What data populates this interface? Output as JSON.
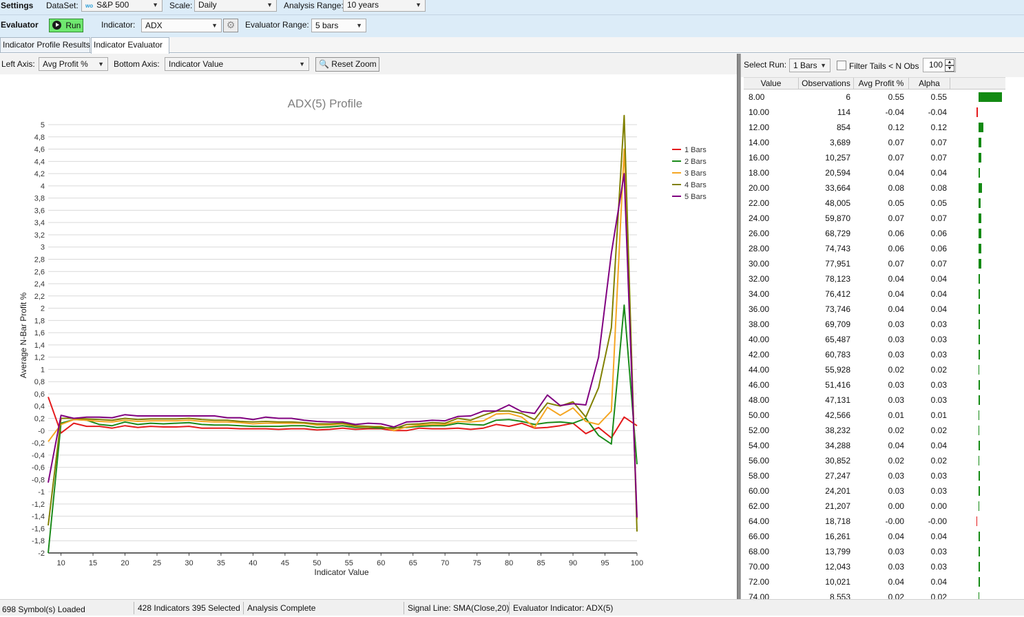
{
  "settings_bar": {
    "title": "Settings",
    "dataset_label": "DataSet:",
    "dataset_badge": "wo",
    "dataset_value": "S&P 500",
    "scale_label": "Scale:",
    "scale_value": "Daily",
    "range_label": "Analysis Range:",
    "range_value": "10 years"
  },
  "evaluator_bar": {
    "title": "Evaluator",
    "run_label": "Run",
    "indicator_label": "Indicator:",
    "indicator_value": "ADX",
    "eval_range_label": "Evaluator Range:",
    "eval_range_value": "5 bars"
  },
  "tabs": [
    {
      "label": "Indicator Profile Results",
      "active": false
    },
    {
      "label": "Indicator Evaluator",
      "active": true
    }
  ],
  "chart_toolbar": {
    "left_axis_label": "Left Axis:",
    "left_axis_value": "Avg Profit %",
    "bottom_axis_label": "Bottom Axis:",
    "bottom_axis_value": "Indicator Value",
    "reset_zoom_label": "Reset Zoom"
  },
  "right_toolbar": {
    "select_run_label": "Select Run:",
    "select_run_value": "1 Bars",
    "filter_label": "Filter Tails < N Obs",
    "filter_checked": false,
    "n_obs_value": "100"
  },
  "results_table": {
    "columns": [
      "Value",
      "Observations",
      "Avg Profit %",
      "Alpha"
    ],
    "rows": [
      {
        "value": "8.00",
        "obs": "6",
        "avg": "0.55",
        "alpha": "0.55",
        "a": 0.55
      },
      {
        "value": "10.00",
        "obs": "114",
        "avg": "-0.04",
        "alpha": "-0.04",
        "a": -0.04
      },
      {
        "value": "12.00",
        "obs": "854",
        "avg": "0.12",
        "alpha": "0.12",
        "a": 0.12
      },
      {
        "value": "14.00",
        "obs": "3,689",
        "avg": "0.07",
        "alpha": "0.07",
        "a": 0.07
      },
      {
        "value": "16.00",
        "obs": "10,257",
        "avg": "0.07",
        "alpha": "0.07",
        "a": 0.07
      },
      {
        "value": "18.00",
        "obs": "20,594",
        "avg": "0.04",
        "alpha": "0.04",
        "a": 0.04
      },
      {
        "value": "20.00",
        "obs": "33,664",
        "avg": "0.08",
        "alpha": "0.08",
        "a": 0.08
      },
      {
        "value": "22.00",
        "obs": "48,005",
        "avg": "0.05",
        "alpha": "0.05",
        "a": 0.05
      },
      {
        "value": "24.00",
        "obs": "59,870",
        "avg": "0.07",
        "alpha": "0.07",
        "a": 0.07
      },
      {
        "value": "26.00",
        "obs": "68,729",
        "avg": "0.06",
        "alpha": "0.06",
        "a": 0.06
      },
      {
        "value": "28.00",
        "obs": "74,743",
        "avg": "0.06",
        "alpha": "0.06",
        "a": 0.06
      },
      {
        "value": "30.00",
        "obs": "77,951",
        "avg": "0.07",
        "alpha": "0.07",
        "a": 0.07
      },
      {
        "value": "32.00",
        "obs": "78,123",
        "avg": "0.04",
        "alpha": "0.04",
        "a": 0.04
      },
      {
        "value": "34.00",
        "obs": "76,412",
        "avg": "0.04",
        "alpha": "0.04",
        "a": 0.04
      },
      {
        "value": "36.00",
        "obs": "73,746",
        "avg": "0.04",
        "alpha": "0.04",
        "a": 0.04
      },
      {
        "value": "38.00",
        "obs": "69,709",
        "avg": "0.03",
        "alpha": "0.03",
        "a": 0.03
      },
      {
        "value": "40.00",
        "obs": "65,487",
        "avg": "0.03",
        "alpha": "0.03",
        "a": 0.03
      },
      {
        "value": "42.00",
        "obs": "60,783",
        "avg": "0.03",
        "alpha": "0.03",
        "a": 0.03
      },
      {
        "value": "44.00",
        "obs": "55,928",
        "avg": "0.02",
        "alpha": "0.02",
        "a": 0.02
      },
      {
        "value": "46.00",
        "obs": "51,416",
        "avg": "0.03",
        "alpha": "0.03",
        "a": 0.03
      },
      {
        "value": "48.00",
        "obs": "47,131",
        "avg": "0.03",
        "alpha": "0.03",
        "a": 0.03
      },
      {
        "value": "50.00",
        "obs": "42,566",
        "avg": "0.01",
        "alpha": "0.01",
        "a": 0.01
      },
      {
        "value": "52.00",
        "obs": "38,232",
        "avg": "0.02",
        "alpha": "0.02",
        "a": 0.02
      },
      {
        "value": "54.00",
        "obs": "34,288",
        "avg": "0.04",
        "alpha": "0.04",
        "a": 0.04
      },
      {
        "value": "56.00",
        "obs": "30,852",
        "avg": "0.02",
        "alpha": "0.02",
        "a": 0.02
      },
      {
        "value": "58.00",
        "obs": "27,247",
        "avg": "0.03",
        "alpha": "0.03",
        "a": 0.03
      },
      {
        "value": "60.00",
        "obs": "24,201",
        "avg": "0.03",
        "alpha": "0.03",
        "a": 0.03
      },
      {
        "value": "62.00",
        "obs": "21,207",
        "avg": "0.00",
        "alpha": "0.00",
        "a": 0.0
      },
      {
        "value": "64.00",
        "obs": "18,718",
        "avg": "-0.00",
        "alpha": "-0.00",
        "a": -0.004
      },
      {
        "value": "66.00",
        "obs": "16,261",
        "avg": "0.04",
        "alpha": "0.04",
        "a": 0.04
      },
      {
        "value": "68.00",
        "obs": "13,799",
        "avg": "0.03",
        "alpha": "0.03",
        "a": 0.03
      },
      {
        "value": "70.00",
        "obs": "12,043",
        "avg": "0.03",
        "alpha": "0.03",
        "a": 0.03
      },
      {
        "value": "72.00",
        "obs": "10,021",
        "avg": "0.04",
        "alpha": "0.04",
        "a": 0.04
      },
      {
        "value": "74.00",
        "obs": "8,553",
        "avg": "0.02",
        "alpha": "0.02",
        "a": 0.02
      }
    ]
  },
  "status_bar": {
    "symbols": "698 Symbol(s) Loaded",
    "indicators": "428 Indicators   395 Selected",
    "analysis": "Analysis Complete",
    "signal": "Signal Line: SMA(Close,20)",
    "evaluator": "Evaluator Indicator: ADX(5)"
  },
  "colors": {
    "bars_1": "#e41a1c",
    "bars_2": "#1a8a1a",
    "bars_3": "#f5a623",
    "bars_4": "#808000",
    "bars_5": "#800080",
    "alpha_positive": "#138a13",
    "alpha_negative": "#e41a1c"
  },
  "chart_data": {
    "type": "line",
    "title": "ADX(5) Profile",
    "xlabel": "Indicator Value",
    "ylabel": "Average N-Bar Profit %",
    "xlim": [
      8,
      100
    ],
    "ylim": [
      -2,
      5
    ],
    "x_ticks": [
      10,
      15,
      20,
      25,
      30,
      35,
      40,
      45,
      50,
      55,
      60,
      65,
      70,
      75,
      80,
      85,
      90,
      95,
      100
    ],
    "y_ticks": [
      "5",
      "4,8",
      "4,6",
      "4,4",
      "4,2",
      "4",
      "3,8",
      "3,6",
      "3,4",
      "3,2",
      "3",
      "2,8",
      "2,6",
      "2,4",
      "2,2",
      "2",
      "1,8",
      "1,6",
      "1,4",
      "1,2",
      "1",
      "0,8",
      "0,6",
      "0,4",
      "0,2",
      "-0",
      "-0,2",
      "-0,4",
      "-0,6",
      "-0,8",
      "-1",
      "-1,2",
      "-1,4",
      "-1,6",
      "-1,8",
      "-2"
    ],
    "legend_position": "top-right",
    "x": [
      8,
      10,
      12,
      14,
      16,
      18,
      20,
      22,
      24,
      26,
      28,
      30,
      32,
      34,
      36,
      38,
      40,
      42,
      44,
      46,
      48,
      50,
      52,
      54,
      56,
      58,
      60,
      62,
      64,
      66,
      68,
      70,
      72,
      74,
      76,
      78,
      80,
      82,
      84,
      86,
      88,
      90,
      92,
      94,
      96,
      98,
      100
    ],
    "series": [
      {
        "name": "1 Bars",
        "values": [
          0.55,
          -0.04,
          0.12,
          0.07,
          0.07,
          0.04,
          0.08,
          0.05,
          0.07,
          0.06,
          0.06,
          0.07,
          0.04,
          0.04,
          0.04,
          0.03,
          0.03,
          0.03,
          0.02,
          0.03,
          0.03,
          0.01,
          0.02,
          0.04,
          0.02,
          0.03,
          0.03,
          0.0,
          -0.0,
          0.04,
          0.03,
          0.03,
          0.04,
          0.02,
          0.04,
          0.1,
          0.07,
          0.12,
          0.04,
          0.05,
          0.08,
          0.12,
          -0.05,
          0.05,
          -0.12,
          0.22,
          0.08
        ]
      },
      {
        "name": "2 Bars",
        "values": [
          -2.0,
          0.12,
          0.18,
          0.17,
          0.1,
          0.08,
          0.14,
          0.1,
          0.12,
          0.11,
          0.12,
          0.13,
          0.1,
          0.09,
          0.09,
          0.08,
          0.07,
          0.07,
          0.07,
          0.08,
          0.08,
          0.05,
          0.06,
          0.08,
          0.05,
          0.05,
          0.04,
          0.05,
          0.05,
          0.07,
          0.08,
          0.08,
          0.12,
          0.1,
          0.09,
          0.17,
          0.18,
          0.15,
          0.1,
          0.13,
          0.14,
          0.12,
          0.2,
          -0.08,
          -0.22,
          2.05,
          -0.55
        ]
      },
      {
        "name": "3 Bars",
        "values": [
          -0.18,
          0.1,
          0.18,
          0.17,
          0.15,
          0.14,
          0.17,
          0.15,
          0.16,
          0.16,
          0.16,
          0.17,
          0.15,
          0.14,
          0.14,
          0.13,
          0.11,
          0.12,
          0.12,
          0.12,
          0.12,
          0.09,
          0.09,
          0.11,
          0.07,
          0.06,
          0.07,
          0.0,
          0.06,
          0.09,
          0.1,
          0.1,
          0.15,
          0.14,
          0.16,
          0.27,
          0.28,
          0.22,
          0.05,
          0.38,
          0.25,
          0.37,
          0.15,
          0.1,
          0.32,
          4.6,
          -1.45
        ]
      },
      {
        "name": "4 Bars",
        "values": [
          -1.55,
          0.2,
          0.2,
          0.19,
          0.18,
          0.17,
          0.2,
          0.18,
          0.19,
          0.19,
          0.19,
          0.2,
          0.18,
          0.17,
          0.17,
          0.15,
          0.14,
          0.15,
          0.14,
          0.14,
          0.13,
          0.11,
          0.11,
          0.12,
          0.08,
          0.07,
          0.06,
          0.03,
          0.1,
          0.11,
          0.13,
          0.12,
          0.2,
          0.17,
          0.25,
          0.32,
          0.32,
          0.28,
          0.18,
          0.45,
          0.4,
          0.47,
          0.22,
          0.7,
          1.68,
          5.15,
          -1.65
        ]
      },
      {
        "name": "5 Bars",
        "values": [
          -0.85,
          0.25,
          0.2,
          0.22,
          0.22,
          0.21,
          0.26,
          0.24,
          0.24,
          0.24,
          0.24,
          0.24,
          0.24,
          0.24,
          0.21,
          0.21,
          0.18,
          0.22,
          0.2,
          0.2,
          0.17,
          0.15,
          0.14,
          0.14,
          0.1,
          0.12,
          0.11,
          0.06,
          0.14,
          0.15,
          0.17,
          0.16,
          0.23,
          0.24,
          0.32,
          0.32,
          0.42,
          0.31,
          0.28,
          0.58,
          0.41,
          0.44,
          0.42,
          1.2,
          2.9,
          4.2,
          -1.42
        ]
      }
    ]
  }
}
